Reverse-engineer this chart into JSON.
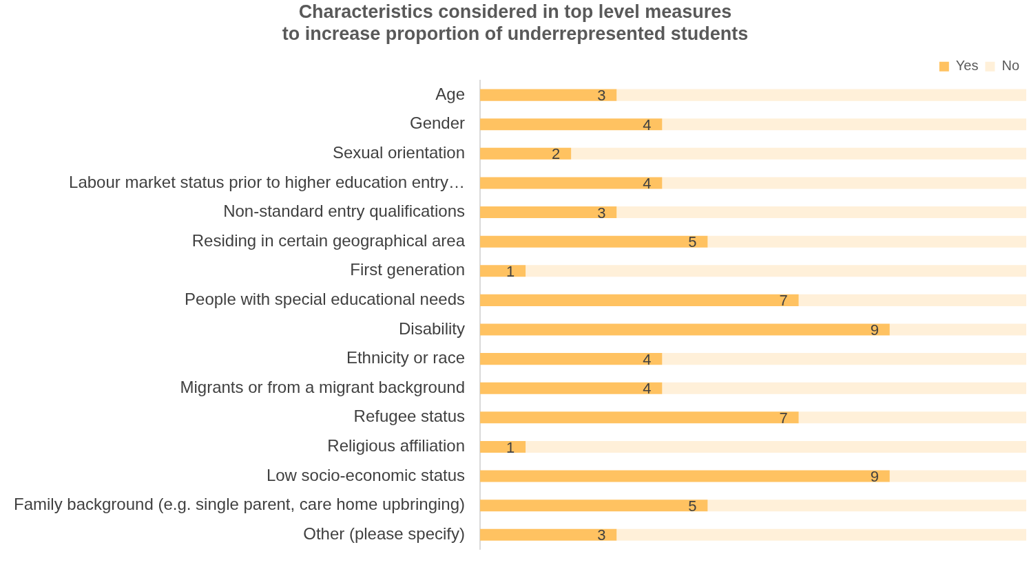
{
  "chart_data": {
    "type": "bar",
    "orientation": "horizontal",
    "stacked": true,
    "xlim": [
      0,
      12
    ],
    "tick_labels": "y",
    "title": "Characteristics considered in top level measures\nto increase proportion of underrepresented students",
    "categories": [
      "Age",
      "Gender",
      "Sexual orientation",
      "Labour market status prior to higher education entry…",
      "Non-standard entry qualifications",
      "Residing in certain geographical area",
      "First generation",
      "People with special educational needs",
      "Disability",
      "Ethnicity or race",
      "Migrants or from a migrant background",
      "Refugee status",
      "Religious affiliation",
      "Low socio-economic status",
      "Family background (e.g. single parent, care home upbringing)",
      "Other (please specify)"
    ],
    "series": [
      {
        "name": "Yes",
        "color": "#ffc261",
        "values": [
          3,
          4,
          2,
          4,
          3,
          5,
          1,
          7,
          9,
          4,
          4,
          7,
          1,
          9,
          5,
          3
        ],
        "value_labels": [
          "3",
          "4",
          "2",
          "4",
          "3",
          "5",
          "1",
          "7",
          "9",
          "4",
          "4",
          "7",
          "1",
          "9",
          "5",
          "3"
        ]
      },
      {
        "name": "No",
        "color": "#fff0d9",
        "values": [
          9,
          8,
          10,
          8,
          9,
          7,
          11,
          5,
          3,
          8,
          8,
          5,
          11,
          3,
          7,
          9
        ]
      }
    ],
    "legend": "top right",
    "grid": false
  }
}
